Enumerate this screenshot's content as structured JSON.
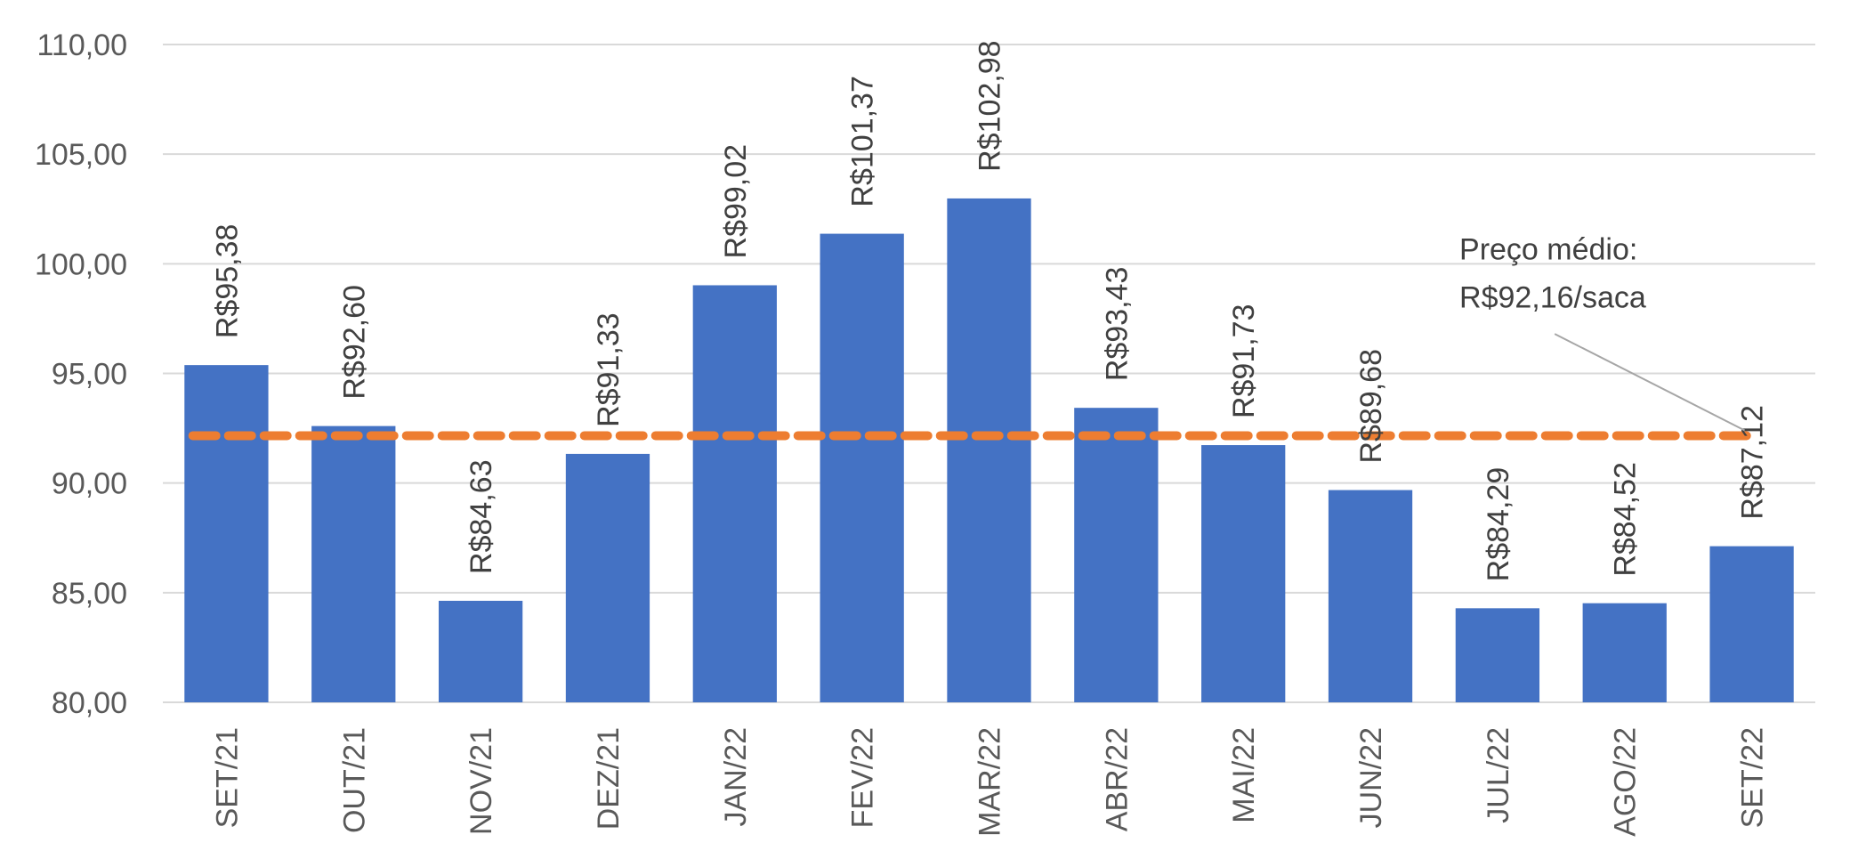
{
  "chart_data": {
    "type": "bar",
    "title": "",
    "xlabel": "",
    "ylabel": "",
    "categories": [
      "SET/21",
      "OUT/21",
      "NOV/21",
      "DEZ/21",
      "JAN/22",
      "FEV/22",
      "MAR/22",
      "ABR/22",
      "MAI/22",
      "JUN/22",
      "JUL/22",
      "AGO/22",
      "SET/22"
    ],
    "values": [
      95.38,
      92.6,
      84.63,
      91.33,
      99.02,
      101.37,
      102.98,
      93.43,
      91.73,
      89.68,
      84.29,
      84.52,
      87.12
    ],
    "data_labels": [
      "R$95,38",
      "R$92,60",
      "R$84,63",
      "R$91,33",
      "R$99,02",
      "R$101,37",
      "R$102,98",
      "R$93,43",
      "R$91,73",
      "R$89,68",
      "R$84,29",
      "R$84,52",
      "R$87,12"
    ],
    "ylim": [
      80,
      110
    ],
    "yticks": [
      80,
      85,
      90,
      95,
      100,
      105,
      110
    ],
    "ytick_labels": [
      "80,00",
      "85,00",
      "90,00",
      "95,00",
      "100,00",
      "105,00",
      "110,00"
    ],
    "grid": true,
    "bar_color": "#4472c4",
    "reference_line": {
      "value": 92.16,
      "color": "#ed7d31",
      "style": "dashed",
      "annotation_lines": [
        "Preço médio:",
        "R$92,16/saca"
      ]
    }
  }
}
